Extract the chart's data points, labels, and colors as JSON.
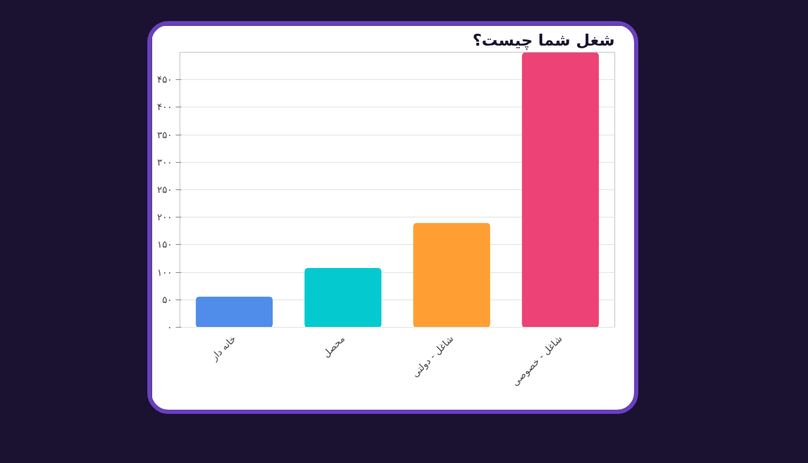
{
  "chart_data": {
    "type": "bar",
    "title": "شغل شما چیست؟",
    "categories": [
      "خانه دار",
      "محصل",
      "شاغل - دولتی",
      "شاغل - خصوصی"
    ],
    "values": [
      55,
      107,
      189,
      499
    ],
    "colors": [
      "#508ce9",
      "#04cad0",
      "#ff9f33",
      "#ec4275"
    ],
    "ylim": [
      0,
      500
    ],
    "yticks": [
      {
        "value": 0,
        "label": "۰"
      },
      {
        "value": 50,
        "label": "۵۰"
      },
      {
        "value": 100,
        "label": "۱۰۰"
      },
      {
        "value": 150,
        "label": "۱۵۰"
      },
      {
        "value": 200,
        "label": "۲۰۰"
      },
      {
        "value": 250,
        "label": "۲۵۰"
      },
      {
        "value": 300,
        "label": "۳۰۰"
      },
      {
        "value": 350,
        "label": "۳۵۰"
      },
      {
        "value": 400,
        "label": "۴۰۰"
      },
      {
        "value": 450,
        "label": "۴۵۰"
      }
    ],
    "grid": "y"
  }
}
